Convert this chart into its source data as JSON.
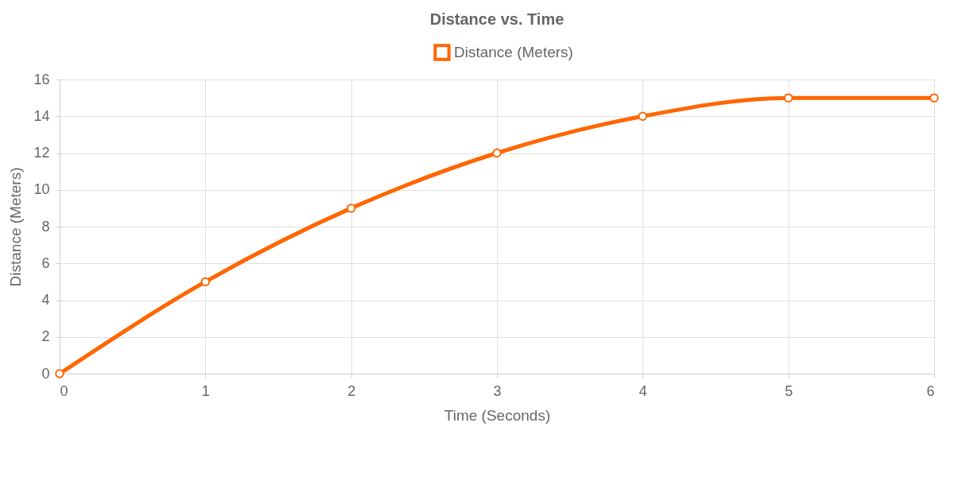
{
  "chart_data": {
    "type": "line",
    "title": "Distance vs. Time",
    "xlabel": "Time (Seconds)",
    "ylabel": "Distance (Meters)",
    "x": [
      0,
      1,
      2,
      3,
      4,
      5,
      6
    ],
    "series": [
      {
        "name": "Distance (Meters)",
        "color": "#ff6600",
        "values": [
          0,
          5,
          9,
          12,
          14,
          15,
          15
        ]
      }
    ],
    "xlim": [
      0,
      6
    ],
    "xticks": [
      0,
      1,
      2,
      3,
      4,
      5,
      6
    ],
    "ylim": [
      0,
      16
    ],
    "yticks": [
      0,
      2,
      4,
      6,
      8,
      10,
      12,
      14,
      16
    ],
    "grid": true,
    "legend": "top",
    "marker": "circle",
    "line_style": "solid"
  }
}
